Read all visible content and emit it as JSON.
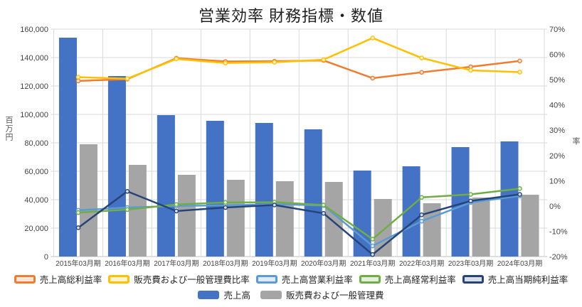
{
  "title": "営業効率 財務指標・数値",
  "left_axis": {
    "label": "百万円",
    "ticks": [
      "160,000",
      "140,000",
      "120,000",
      "100,000",
      "80,000",
      "60,000",
      "40,000",
      "20,000",
      "0"
    ],
    "min": 0,
    "max": 160000,
    "step": 20000
  },
  "right_axis": {
    "label": "率",
    "ticks": [
      "70%",
      "60%",
      "50%",
      "40%",
      "30%",
      "20%",
      "10%",
      "0%",
      "-10%",
      "-20%"
    ],
    "min": -20,
    "max": 70,
    "step": 10
  },
  "chart_data": {
    "type": "combo-bar-line",
    "categories": [
      "2015年03月期",
      "2016年03月期",
      "2017年03月期",
      "2018年03月期",
      "2019年03月期",
      "2020年03月期",
      "2021年03月期",
      "2022年03月期",
      "2023年03月期",
      "2024年03月期"
    ],
    "grid": true,
    "legend_position": "bottom",
    "bar_axis": "left",
    "line_axis": "right",
    "bar_series": [
      {
        "name": "売上高",
        "color": "#4472C4",
        "values": [
          154000,
          127000,
          99500,
          95500,
          94000,
          89500,
          60500,
          63500,
          77000,
          81000
        ]
      },
      {
        "name": "販売費および一般管理費",
        "color": "#A5A5A5",
        "values": [
          79000,
          64500,
          57500,
          54000,
          53000,
          52500,
          40500,
          37500,
          41500,
          43500
        ]
      }
    ],
    "line_series": [
      {
        "name": "売上高総利益率",
        "color": "#ED7D31",
        "fill": "#FBE5D6",
        "values": [
          49.5,
          50.2,
          58.5,
          57.2,
          57.3,
          57.6,
          50.6,
          52.9,
          55.1,
          57.4
        ]
      },
      {
        "name": "販売費および一般管理費比率",
        "color": "#FFC000",
        "fill": "#FFF2CC",
        "values": [
          51.0,
          50.4,
          58.2,
          56.6,
          56.9,
          57.9,
          66.5,
          58.6,
          53.7,
          53.0
        ]
      },
      {
        "name": "売上高営業利益率",
        "color": "#5B9BD5",
        "fill": "#DEEBF7",
        "values": [
          -1.7,
          -0.6,
          0.0,
          0.3,
          0.7,
          0.2,
          -15.8,
          -6.0,
          1.4,
          4.0
        ]
      },
      {
        "name": "売上高経常利益率",
        "color": "#70AD47",
        "fill": "#E2EFDA",
        "values": [
          -2.6,
          -1.4,
          0.6,
          1.4,
          1.5,
          0.4,
          -13.1,
          3.4,
          4.6,
          6.9
        ]
      },
      {
        "name": "売上高当期純利益率",
        "color": "#264478",
        "fill": "#D9DEE8",
        "values": [
          -8.6,
          5.8,
          -2.0,
          -0.6,
          0.4,
          -2.9,
          -19.2,
          -3.5,
          2.0,
          4.6
        ]
      }
    ],
    "left_axis_range": [
      0,
      160000
    ],
    "right_axis_range": [
      -20,
      70
    ]
  }
}
